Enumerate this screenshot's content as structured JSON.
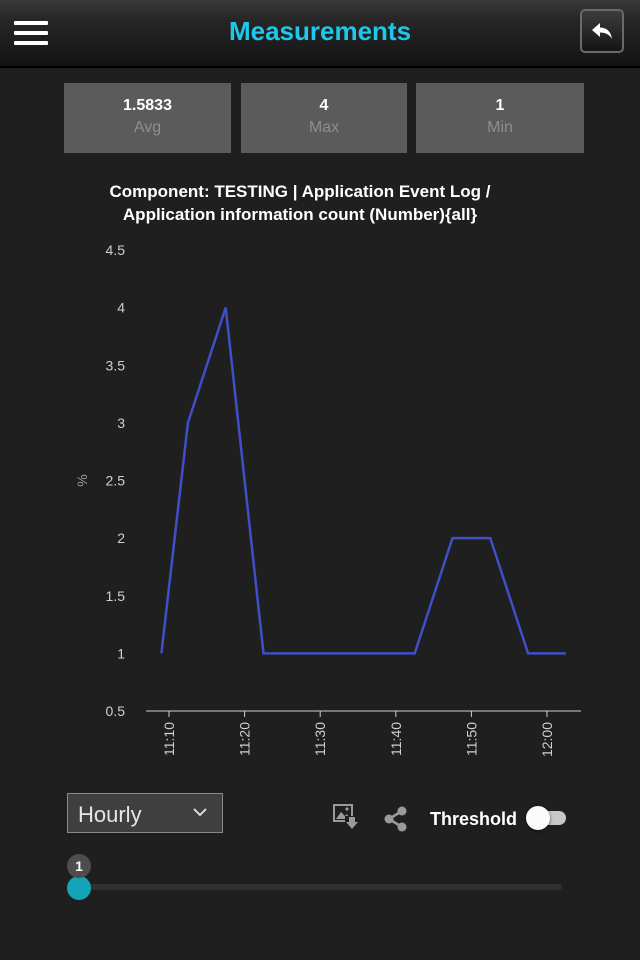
{
  "header": {
    "title": "Measurements",
    "menu_icon": "hamburger-menu-icon",
    "back_icon": "back-arrow-icon"
  },
  "stats": [
    {
      "value": "1.5833",
      "label": "Avg"
    },
    {
      "value": "4",
      "label": "Max"
    },
    {
      "value": "1",
      "label": "Min"
    }
  ],
  "chart": {
    "title_line1": "Component: TESTING | Application Event Log /",
    "title_line2": "Application information count (Number){all}"
  },
  "chart_data": {
    "type": "line",
    "title": "Component: TESTING | Application Event Log / Application information count (Number){all}",
    "ylabel": "%",
    "xlabel": "",
    "ylim": [
      0.5,
      4.5
    ],
    "y_ticks": [
      "0.5",
      "1",
      "1.5",
      "2",
      "2.5",
      "3",
      "3.5",
      "4",
      "4.5"
    ],
    "x_ticks": [
      "11:10",
      "11:20",
      "11:30",
      "11:40",
      "11:50",
      "12:00"
    ],
    "x_minutes_ticks": [
      10,
      20,
      30,
      40,
      50,
      60
    ],
    "grid": false,
    "line_color": "#3f4fc8",
    "series": [
      {
        "x_minutes": [
          9,
          12.5,
          17.5,
          22.5,
          27.5,
          32.5,
          37.5,
          42.5,
          47.5,
          52.5,
          57.5,
          62.5
        ],
        "values": [
          1,
          3,
          4,
          1,
          1,
          1,
          1,
          1,
          2,
          2,
          1,
          1
        ]
      }
    ]
  },
  "controls": {
    "period": "Hourly",
    "export_icon": "export-image-icon",
    "share_icon": "share-icon",
    "threshold_label": "Threshold",
    "threshold_on": false
  },
  "slider": {
    "value": "1",
    "accent": "#14a3b8"
  }
}
